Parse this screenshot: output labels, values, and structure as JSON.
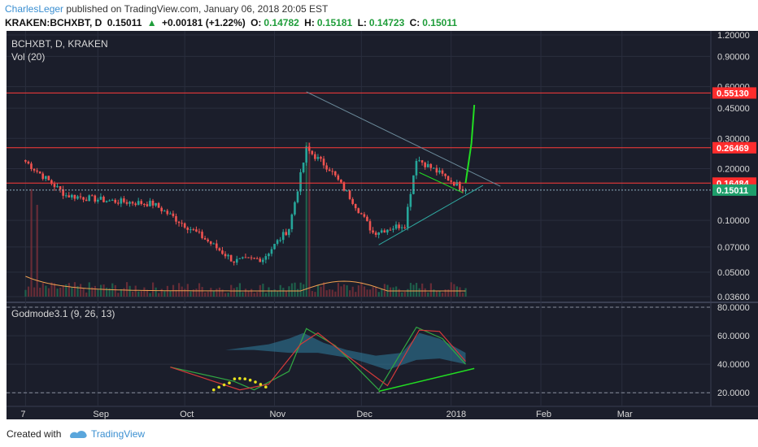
{
  "header": {
    "author": "CharlesLeger",
    "published": "published on TradingView.com, January 06, 2018 20:05 EST",
    "symbol": "KRAKEN:BCHXBT, D",
    "last": "0.15011",
    "change": "+0.00181 (+1.22%)",
    "o_label": "O:",
    "o": "0.14782",
    "h_label": "H:",
    "h": "0.15181",
    "l_label": "L:",
    "l": "0.14723",
    "c_label": "C:",
    "c": "0.15011"
  },
  "footer": {
    "created": "Created with",
    "brand": "TradingView"
  },
  "colors": {
    "background": "#1b1e2b",
    "up": "#26a69a",
    "down": "#ef5350",
    "level": "#ff3b3b",
    "projection": "#22dd22",
    "volume_ma": "#f0a050"
  },
  "chart_data": [
    {
      "type": "line",
      "panel": "price",
      "title": "BCHXBT, D, KRAKEN",
      "subtitle": "Vol (20)",
      "scale": "log",
      "ylim": [
        0.036,
        1.2
      ],
      "yticks": [
        "1.20000",
        "0.90000",
        "0.60000",
        "0.45000",
        "0.30000",
        "0.20000",
        "0.10000",
        "0.07000",
        "0.05000",
        "0.03600"
      ],
      "xticks": [
        "7",
        "Sep",
        "Oct",
        "Nov",
        "Dec",
        "2018",
        "Feb",
        "Mar"
      ],
      "price_labels": [
        "0.55130",
        "0.26469",
        "0.16484",
        "0.15011"
      ],
      "levels": [
        0.5513,
        0.26469,
        0.16484
      ],
      "last_price": 0.15011,
      "close_series": {
        "x": [
          "Aug 7",
          "Aug 21",
          "Sep 5",
          "Sep 20",
          "Oct 5",
          "Oct 18",
          "Oct 28",
          "Nov 6",
          "Nov 12",
          "Nov 20",
          "Nov 28",
          "Dec 5",
          "Dec 16",
          "Dec 20",
          "Jan 1",
          "Jan 6"
        ],
        "values": [
          0.22,
          0.14,
          0.13,
          0.125,
          0.085,
          0.058,
          0.06,
          0.09,
          0.26,
          0.2,
          0.13,
          0.085,
          0.095,
          0.23,
          0.17,
          0.15
        ]
      },
      "projection": {
        "from": "Jan 6",
        "to": "Jan 9",
        "values": [
          0.165,
          0.47
        ]
      }
    },
    {
      "type": "line",
      "panel": "oscillator",
      "title": "Godmode3.1 (9, 26, 13)",
      "ylim": [
        15,
        80
      ],
      "yticks": [
        "80.0000",
        "60.0000",
        "40.0000",
        "20.0000"
      ],
      "levels": [
        80,
        20
      ],
      "series": [
        {
          "x": [
            "Sep 26",
            "Oct 18",
            "Oct 25",
            "Nov 6",
            "Nov 12",
            "Nov 22",
            "Dec 7",
            "Dec 20",
            "Dec 29",
            "Jan 6"
          ],
          "values": [
            38,
            28,
            22,
            35,
            65,
            53,
            22,
            66,
            58,
            40
          ]
        },
        {
          "x": [
            "Sep 26",
            "Oct 20",
            "Oct 30",
            "Nov 10",
            "Nov 16",
            "Nov 26",
            "Dec 10",
            "Dec 21",
            "Dec 28",
            "Jan 6"
          ],
          "values": [
            38,
            22,
            26,
            54,
            62,
            46,
            25,
            64,
            63,
            42
          ]
        }
      ],
      "divergence": {
        "x": [
          "Dec 7",
          "Jan 9"
        ],
        "values": [
          21,
          37
        ]
      }
    }
  ]
}
